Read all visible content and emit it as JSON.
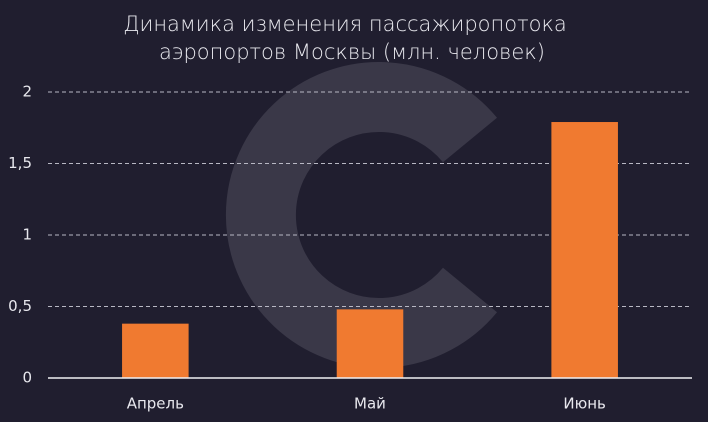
{
  "chart_data": {
    "type": "bar",
    "title": [
      "Динамика изменения пассажиропотока",
      "аэропортов Москвы (млн. человек)"
    ],
    "categories": [
      "Апрель",
      "Май",
      "Июнь"
    ],
    "values": [
      0.38,
      0.48,
      1.79
    ],
    "color": "#f07a30",
    "ylim": [
      0,
      2
    ],
    "yticks": [
      0,
      {
        "value": 0.5,
        "label": "0,5"
      },
      1,
      {
        "value": 1.5,
        "label": "1,5"
      },
      2
    ],
    "grid": true
  }
}
